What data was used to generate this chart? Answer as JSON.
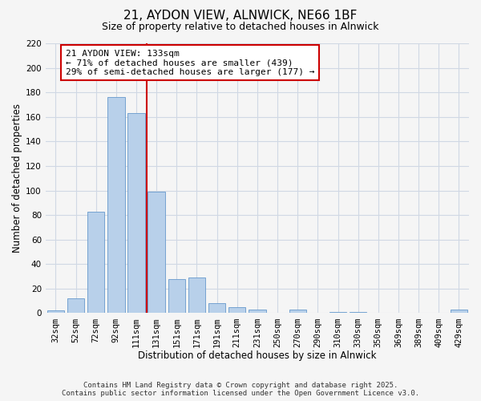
{
  "title": "21, AYDON VIEW, ALNWICK, NE66 1BF",
  "subtitle": "Size of property relative to detached houses in Alnwick",
  "xlabel": "Distribution of detached houses by size in Alnwick",
  "ylabel": "Number of detached properties",
  "bin_labels": [
    "32sqm",
    "52sqm",
    "72sqm",
    "92sqm",
    "111sqm",
    "131sqm",
    "151sqm",
    "171sqm",
    "191sqm",
    "211sqm",
    "231sqm",
    "250sqm",
    "270sqm",
    "290sqm",
    "310sqm",
    "330sqm",
    "350sqm",
    "369sqm",
    "389sqm",
    "409sqm",
    "429sqm"
  ],
  "bar_heights": [
    2,
    12,
    83,
    176,
    163,
    99,
    28,
    29,
    8,
    5,
    3,
    0,
    3,
    0,
    1,
    1,
    0,
    0,
    0,
    0,
    3
  ],
  "bar_color": "#b8d0ea",
  "bar_edge_color": "#6699cc",
  "vline_index": 5,
  "vline_color": "#cc0000",
  "annotation_text": "21 AYDON VIEW: 133sqm\n← 71% of detached houses are smaller (439)\n29% of semi-detached houses are larger (177) →",
  "annotation_box_facecolor": "#ffffff",
  "annotation_box_edgecolor": "#cc0000",
  "ylim": [
    0,
    220
  ],
  "yticks": [
    0,
    20,
    40,
    60,
    80,
    100,
    120,
    140,
    160,
    180,
    200,
    220
  ],
  "footer_line1": "Contains HM Land Registry data © Crown copyright and database right 2025.",
  "footer_line2": "Contains public sector information licensed under the Open Government Licence v3.0.",
  "background_color": "#f5f5f5",
  "grid_color": "#d0d8e4",
  "title_fontsize": 11,
  "subtitle_fontsize": 9,
  "axis_label_fontsize": 8.5,
  "tick_fontsize": 7.5,
  "annotation_fontsize": 8,
  "footer_fontsize": 6.5
}
